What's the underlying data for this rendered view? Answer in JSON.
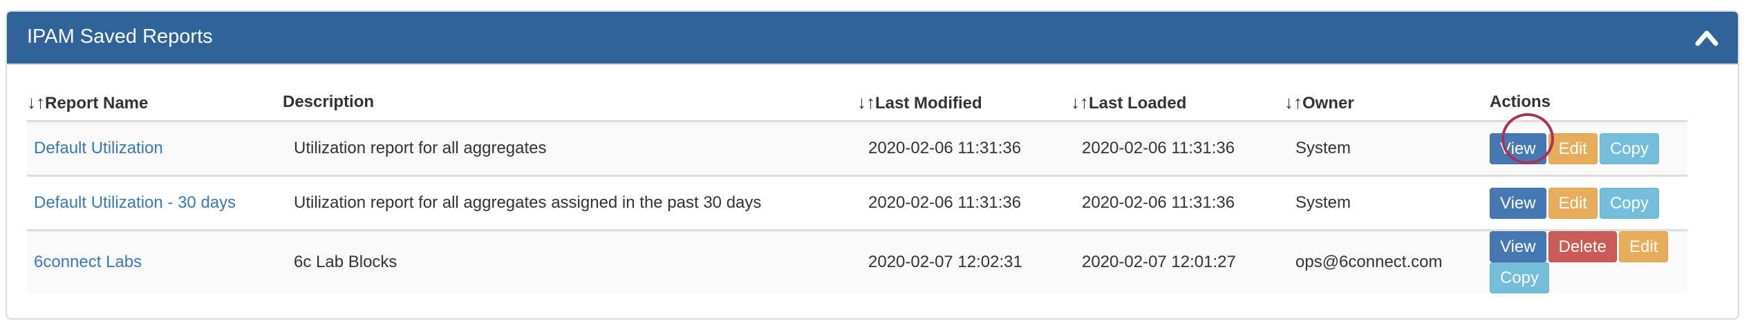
{
  "panel": {
    "title": "IPAM Saved Reports",
    "collapse_icon": "chevron-up-icon",
    "header_color": "#2f6399"
  },
  "columns": [
    {
      "label": "Report Name",
      "sortable": true
    },
    {
      "label": "Description",
      "sortable": false
    },
    {
      "label": "Last Modified",
      "sortable": true
    },
    {
      "label": "Last Loaded",
      "sortable": true
    },
    {
      "label": "Owner",
      "sortable": true
    },
    {
      "label": "Actions",
      "sortable": false
    }
  ],
  "sort_icon": "↓↑",
  "rows": [
    {
      "name": "Default Utilization",
      "description": "Utilization report for all aggregates",
      "last_modified": "2020-02-06 11:31:36",
      "last_loaded": "2020-02-06 11:31:36",
      "owner": "System",
      "actions": [
        "View",
        "Edit",
        "Copy"
      ]
    },
    {
      "name": "Default Utilization - 30 days",
      "description": "Utilization report for all aggregates assigned in the past 30 days",
      "last_modified": "2020-02-06 11:31:36",
      "last_loaded": "2020-02-06 11:31:36",
      "owner": "System",
      "actions": [
        "View",
        "Edit",
        "Copy"
      ]
    },
    {
      "name": "6connect Labs",
      "description": "6c Lab Blocks",
      "last_modified": "2020-02-07 12:02:31",
      "last_loaded": "2020-02-07 12:01:27",
      "owner": "ops@6connect.com",
      "actions": [
        "View",
        "Delete",
        "Edit",
        "Copy"
      ]
    }
  ],
  "highlight": {
    "row": 0,
    "action": "Edit",
    "color": "#a9325a"
  }
}
